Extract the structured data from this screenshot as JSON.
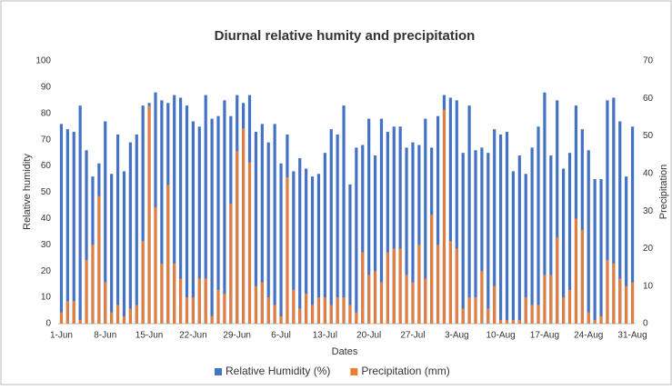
{
  "chart_data": {
    "type": "bar",
    "title": "Diurnal relative humity and precipitation",
    "x_label": "Dates",
    "y_label": "Relative humidity",
    "y2_label": "Precipitation",
    "categories": [
      "1-Jun",
      null,
      null,
      null,
      null,
      null,
      null,
      "8-Jun",
      null,
      null,
      null,
      null,
      null,
      null,
      "15-Jun",
      null,
      null,
      null,
      null,
      null,
      null,
      "22-Jun",
      null,
      null,
      null,
      null,
      null,
      null,
      "29-Jun",
      null,
      null,
      null,
      null,
      null,
      null,
      "6-Jul",
      null,
      null,
      null,
      null,
      null,
      null,
      "13-Jul",
      null,
      null,
      null,
      null,
      null,
      null,
      "20-Jul",
      null,
      null,
      null,
      null,
      null,
      null,
      "27-Jul",
      null,
      null,
      null,
      null,
      null,
      null,
      "3-Aug",
      null,
      null,
      null,
      null,
      null,
      null,
      "10-Aug",
      null,
      null,
      null,
      null,
      null,
      null,
      "17-Aug",
      null,
      null,
      null,
      null,
      null,
      null,
      "24-Aug",
      null,
      null,
      null,
      null,
      null,
      null,
      "31-Aug"
    ],
    "series": [
      {
        "name": "Relative Humidity (%)",
        "color": "#4472c4",
        "axis": "y",
        "values": [
          76,
          74,
          73,
          83,
          66,
          56,
          61,
          77,
          57,
          72,
          58,
          69,
          72,
          83,
          84,
          88,
          85,
          84,
          87,
          86,
          83,
          77,
          75,
          87,
          78,
          79,
          85,
          79,
          87,
          84,
          87,
          73,
          76,
          69,
          76,
          61,
          72,
          58,
          63,
          59,
          56,
          57,
          65,
          74,
          72,
          83,
          53,
          67,
          68,
          78,
          64,
          78,
          73,
          75,
          75,
          67,
          69,
          68,
          78,
          67,
          79,
          87,
          86,
          85,
          65,
          83,
          66,
          67,
          65,
          74,
          72,
          73,
          58,
          64,
          57,
          67,
          75,
          88,
          64,
          85,
          59,
          65,
          83,
          74,
          66,
          55,
          55,
          85,
          86,
          77,
          56,
          75
        ]
      },
      {
        "name": "Precipitation (mm)",
        "color": "#ed7d31",
        "axis": "y2",
        "values": [
          3,
          6,
          6,
          1,
          17,
          21,
          34,
          11,
          3,
          5,
          2,
          4,
          5,
          22,
          58,
          31,
          16,
          37,
          16,
          12,
          7,
          7,
          12,
          12,
          2,
          9,
          8,
          32,
          46,
          52,
          43,
          10,
          11,
          7,
          5,
          2,
          39,
          9,
          4,
          8,
          5,
          7,
          7,
          5,
          7,
          7,
          5,
          3,
          19,
          13,
          14,
          11,
          19,
          20,
          20,
          13,
          11,
          21,
          12,
          29,
          21,
          57,
          22,
          20,
          4,
          7,
          7,
          14,
          4,
          10,
          1,
          1,
          1,
          1,
          7,
          5,
          5,
          13,
          13,
          23,
          7,
          9,
          28,
          25,
          3,
          1,
          2,
          17,
          16,
          12,
          10,
          11
        ]
      }
    ],
    "ylim": [
      0,
      100
    ],
    "yticks": [
      0,
      10,
      20,
      30,
      40,
      50,
      60,
      70,
      80,
      90,
      100
    ],
    "y2lim": [
      0,
      70
    ],
    "y2ticks": [
      0,
      10,
      20,
      30,
      40,
      50,
      60,
      70
    ],
    "grid": false,
    "legend": "bottom"
  }
}
